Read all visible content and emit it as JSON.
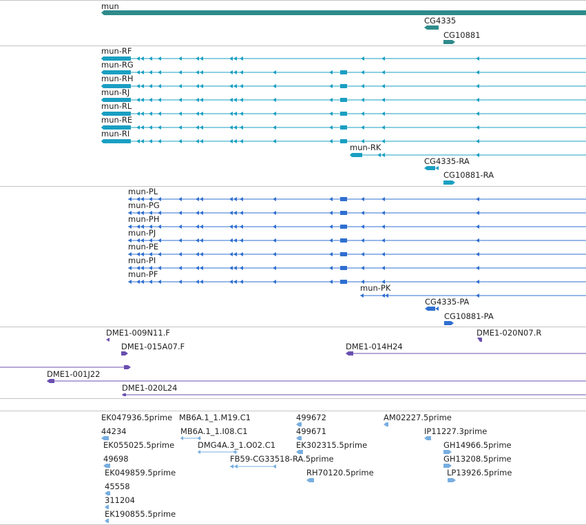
{
  "colors": {
    "gene": "#2e8b8b",
    "transcript": "#1a9fc2",
    "protein": "#2f6fd0",
    "clone": "#6a4fb0",
    "est": "#78aee0",
    "separator": "#c4c4c4"
  },
  "tracks": {
    "genes": {
      "labels": [
        "mun",
        "CG4335",
        "CG10881"
      ]
    },
    "transcripts": {
      "labels": [
        "mun-RF",
        "mun-RG",
        "mun-RH",
        "mun-RJ",
        "mun-RL",
        "mun-RE",
        "mun-RI",
        "mun-RK",
        "CG4335-RA",
        "CG10881-RA"
      ]
    },
    "proteins": {
      "labels": [
        "mun-PL",
        "mun-PG",
        "mun-PH",
        "mun-PJ",
        "mun-PE",
        "mun-PI",
        "mun-PF",
        "mun-PK",
        "CG4335-PA",
        "CG10881-PA"
      ]
    },
    "clones": {
      "labels": [
        "DME1-009N11.F",
        "DME1-015A07.F",
        "DME1-014H24",
        "DME1-020N07.R",
        "DME1-001J22",
        "DME1-020L24"
      ]
    },
    "ests": {
      "labels": [
        "EK047936.5prime",
        "44234",
        "EK055025.5prime",
        "49698",
        "EK049859.5prime",
        "45558",
        "311204",
        "EK190855.5prime",
        "MB6A.1_1.M19.C1",
        "MB6A.1_1.I08.C1",
        "DMG4A.3_1.O02.C1",
        "FB59-CG33518-RA.5prime",
        "499672",
        "499671",
        "EK302315.5prime",
        "RH70120.5prime",
        "AM02227.5prime",
        "IP11227.3prime",
        "GH14966.5prime",
        "GH13208.5prime",
        "LP13926.5prime"
      ]
    }
  }
}
